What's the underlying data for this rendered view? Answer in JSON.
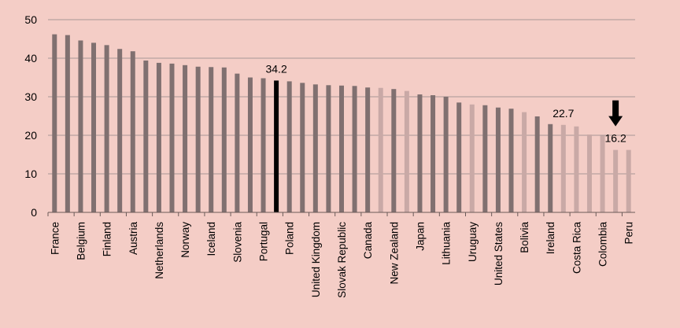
{
  "chart_data": {
    "type": "bar",
    "ylim": [
      0,
      50
    ],
    "yticks": [
      0,
      10,
      20,
      30,
      40,
      50
    ],
    "grid": true,
    "colors": {
      "background": "#f4cdc6",
      "gridline": "#a89896",
      "axis": "#6b5a58",
      "bar_dark": "#807070",
      "bar_light": "#c9a9a6",
      "bar_highlight": "#000000",
      "arrow": "#000000"
    },
    "bars": [
      {
        "category": "France",
        "value": 46.2,
        "style": "dark"
      },
      {
        "category": "",
        "value": 46.0,
        "style": "dark"
      },
      {
        "category": "Belgium",
        "value": 44.6,
        "style": "dark"
      },
      {
        "category": "",
        "value": 44.0,
        "style": "dark"
      },
      {
        "category": "Finland",
        "value": 43.4,
        "style": "dark"
      },
      {
        "category": "",
        "value": 42.4,
        "style": "dark"
      },
      {
        "category": "Austria",
        "value": 41.8,
        "style": "dark"
      },
      {
        "category": "",
        "value": 39.4,
        "style": "dark"
      },
      {
        "category": "Netherlands",
        "value": 38.8,
        "style": "dark"
      },
      {
        "category": "",
        "value": 38.6,
        "style": "dark"
      },
      {
        "category": "Norway",
        "value": 38.2,
        "style": "dark"
      },
      {
        "category": "",
        "value": 37.8,
        "style": "dark"
      },
      {
        "category": "Iceland",
        "value": 37.7,
        "style": "dark"
      },
      {
        "category": "",
        "value": 37.6,
        "style": "dark"
      },
      {
        "category": "Slovenia",
        "value": 36.0,
        "style": "dark"
      },
      {
        "category": "",
        "value": 35.0,
        "style": "dark"
      },
      {
        "category": "Portugal",
        "value": 34.8,
        "style": "dark"
      },
      {
        "category": "",
        "value": 34.2,
        "style": "highlight",
        "label": "34.2"
      },
      {
        "category": "Poland",
        "value": 34.0,
        "style": "dark"
      },
      {
        "category": "",
        "value": 33.6,
        "style": "dark"
      },
      {
        "category": "United Kingdom",
        "value": 33.2,
        "style": "dark"
      },
      {
        "category": "",
        "value": 33.0,
        "style": "dark"
      },
      {
        "category": "Slovak Republic",
        "value": 32.9,
        "style": "dark"
      },
      {
        "category": "",
        "value": 32.8,
        "style": "dark"
      },
      {
        "category": "Canada",
        "value": 32.4,
        "style": "dark"
      },
      {
        "category": "",
        "value": 32.3,
        "style": "light"
      },
      {
        "category": "New Zealand",
        "value": 32.0,
        "style": "dark"
      },
      {
        "category": "",
        "value": 31.5,
        "style": "light"
      },
      {
        "category": "Japan",
        "value": 30.6,
        "style": "dark"
      },
      {
        "category": "",
        "value": 30.4,
        "style": "dark"
      },
      {
        "category": "Lithuania",
        "value": 30.0,
        "style": "dark"
      },
      {
        "category": "",
        "value": 28.5,
        "style": "dark"
      },
      {
        "category": "Uruguay",
        "value": 28.0,
        "style": "light"
      },
      {
        "category": "",
        "value": 27.8,
        "style": "dark"
      },
      {
        "category": "United States",
        "value": 27.2,
        "style": "dark"
      },
      {
        "category": "",
        "value": 26.9,
        "style": "dark"
      },
      {
        "category": "Bolivia",
        "value": 26.0,
        "style": "light"
      },
      {
        "category": "",
        "value": 24.9,
        "style": "dark"
      },
      {
        "category": "Ireland",
        "value": 22.9,
        "style": "dark"
      },
      {
        "category": "",
        "value": 22.7,
        "style": "light",
        "label": "22.7"
      },
      {
        "category": "Costa Rica",
        "value": 22.3,
        "style": "light"
      },
      {
        "category": "",
        "value": 20.2,
        "style": "light"
      },
      {
        "category": "Colombia",
        "value": 19.9,
        "style": "light"
      },
      {
        "category": "",
        "value": 16.2,
        "style": "light",
        "label": "16.2",
        "arrow": true
      },
      {
        "category": "Peru",
        "value": 16.2,
        "style": "light"
      }
    ]
  }
}
